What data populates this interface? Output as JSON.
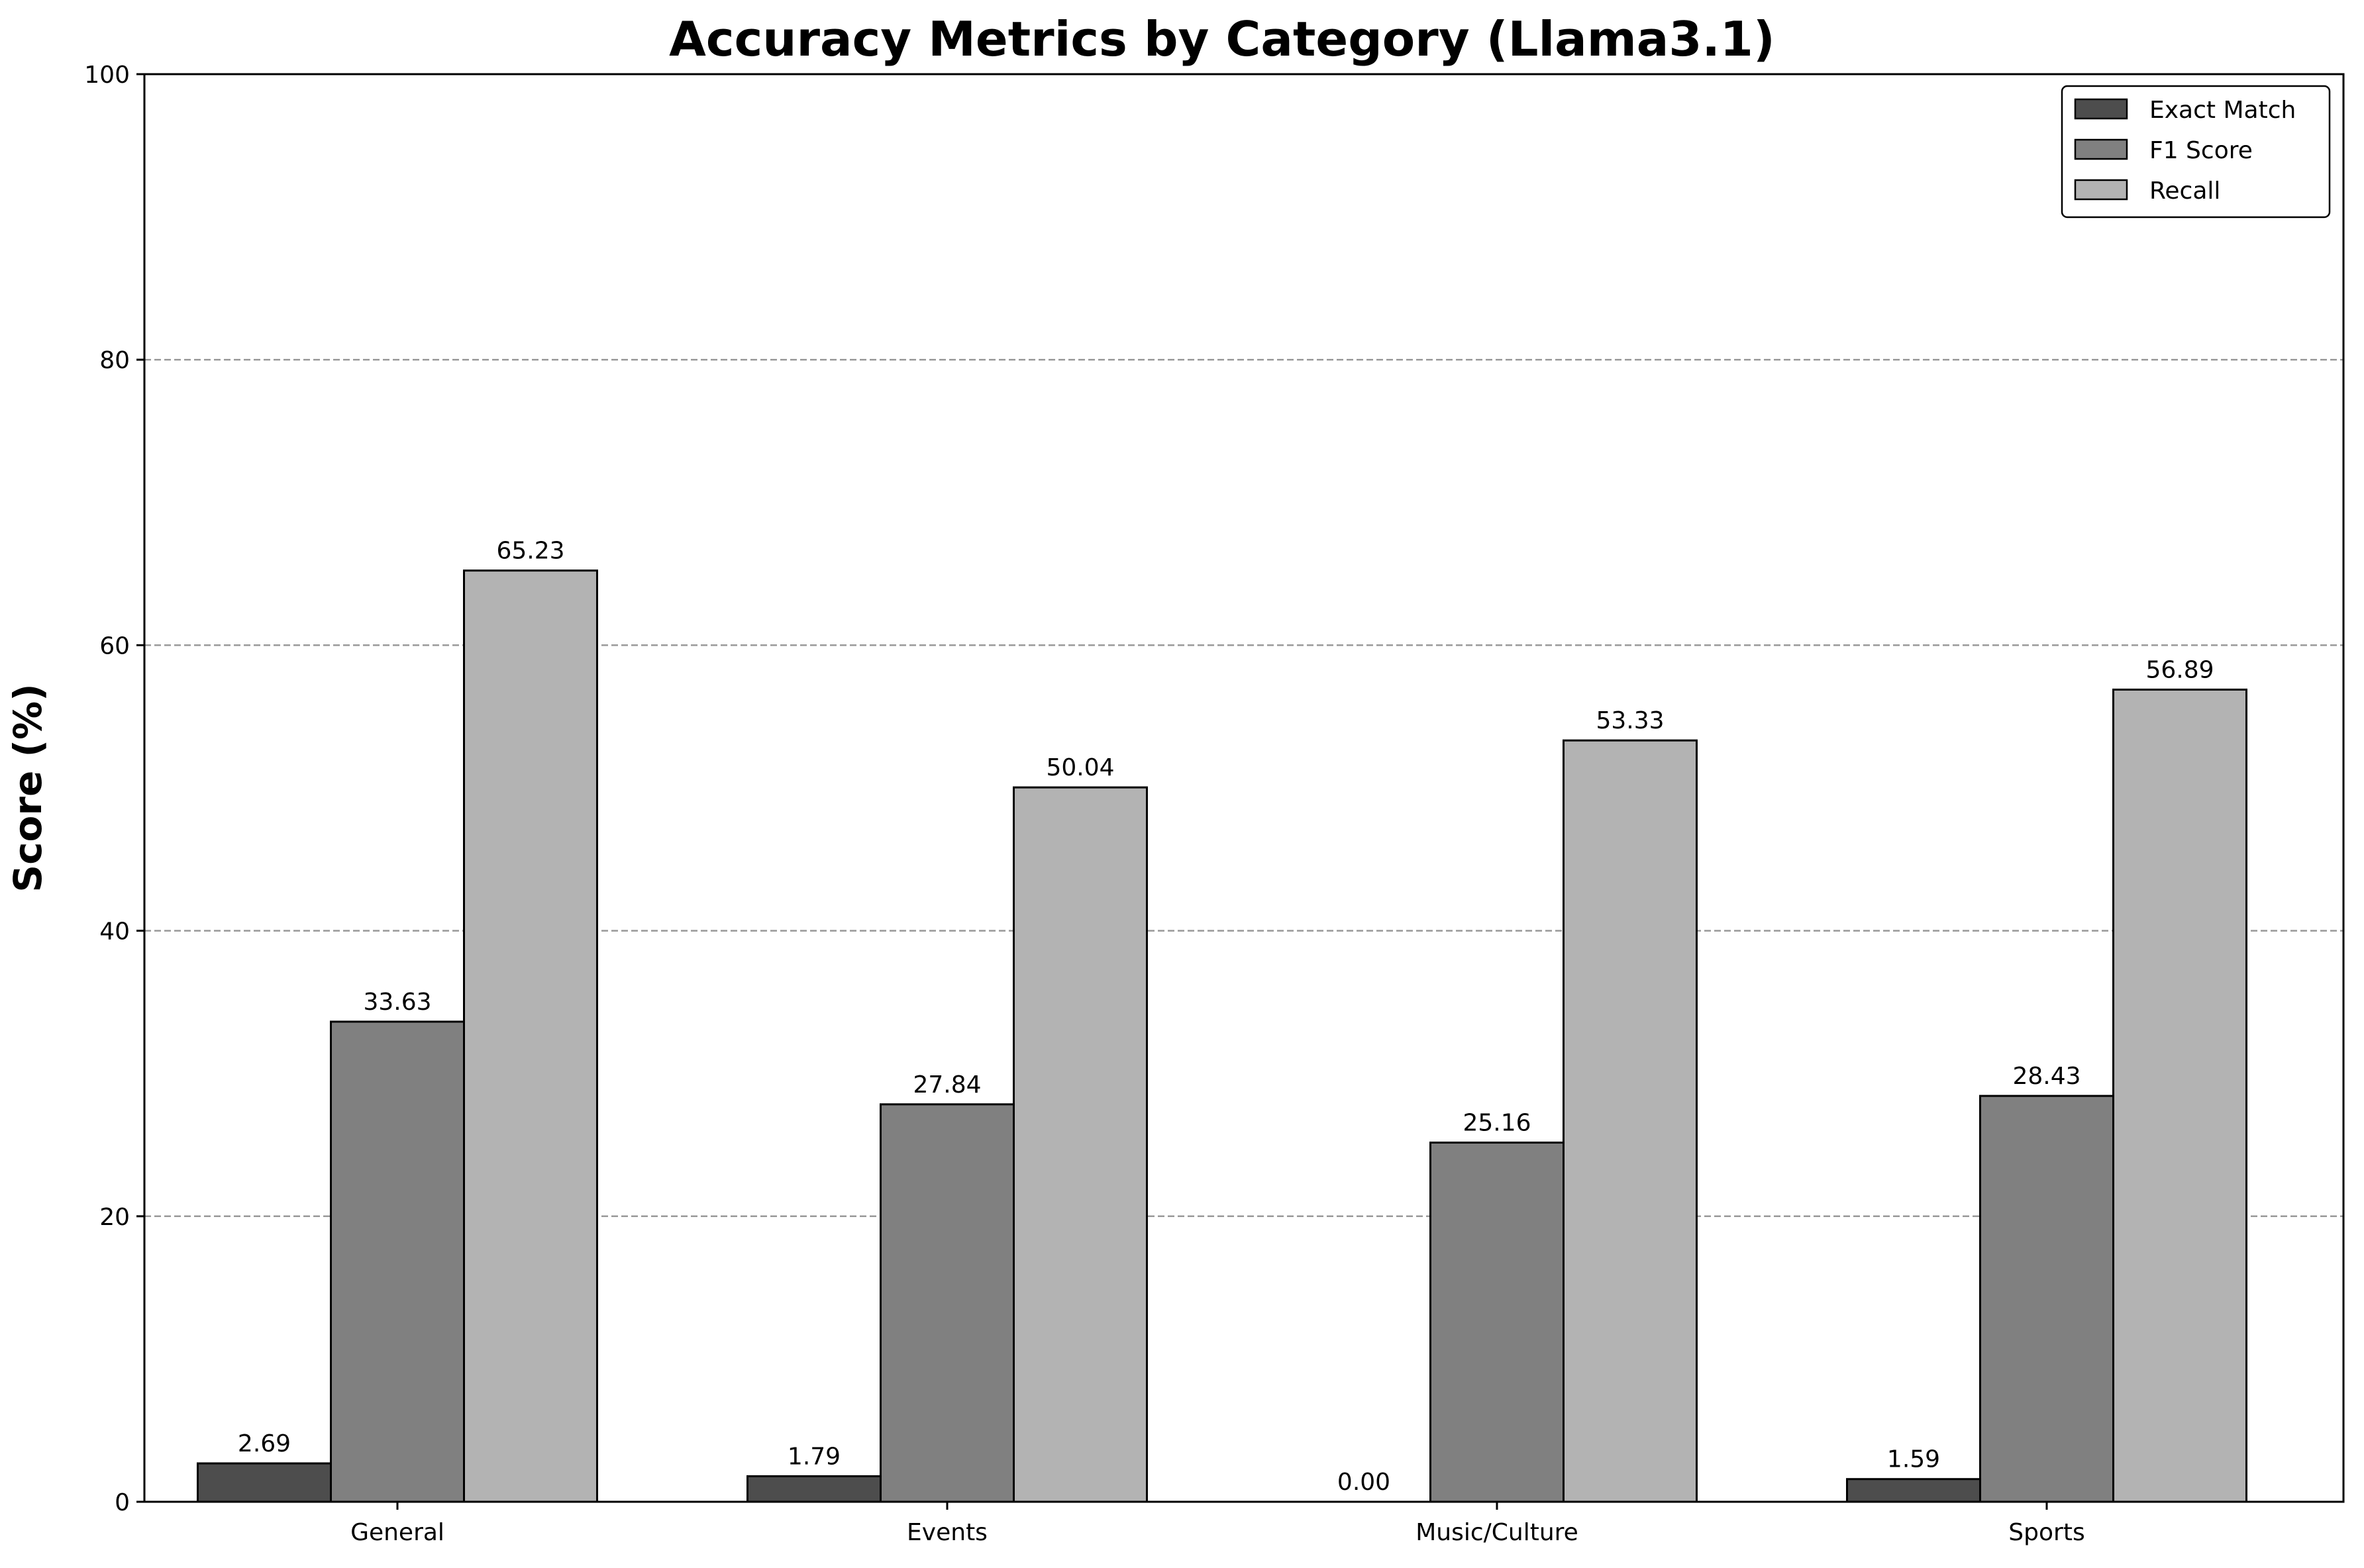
{
  "chart_data": {
    "type": "bar",
    "title": "Accuracy Metrics by Category (Llama3.1)",
    "xlabel": "",
    "ylabel": "Score (%)",
    "ylim": [
      0,
      100
    ],
    "yticks": [
      0,
      20,
      40,
      60,
      80,
      100
    ],
    "grid": "y dashed",
    "legend_position": "top-right",
    "categories": [
      "General",
      "Events",
      "Music/Culture",
      "Sports"
    ],
    "series": [
      {
        "name": "Exact Match",
        "color": "#4d4d4d",
        "values": [
          2.69,
          1.79,
          0.0,
          1.59
        ],
        "labels": [
          "2.69",
          "1.79",
          "0.00",
          "1.59"
        ]
      },
      {
        "name": "F1 Score",
        "color": "#808080",
        "values": [
          33.63,
          27.84,
          25.16,
          28.43
        ],
        "labels": [
          "33.63",
          "27.84",
          "25.16",
          "28.43"
        ]
      },
      {
        "name": "Recall",
        "color": "#b3b3b3",
        "values": [
          65.23,
          50.04,
          53.33,
          56.89
        ],
        "labels": [
          "65.23",
          "50.04",
          "53.33",
          "56.89"
        ]
      }
    ]
  }
}
